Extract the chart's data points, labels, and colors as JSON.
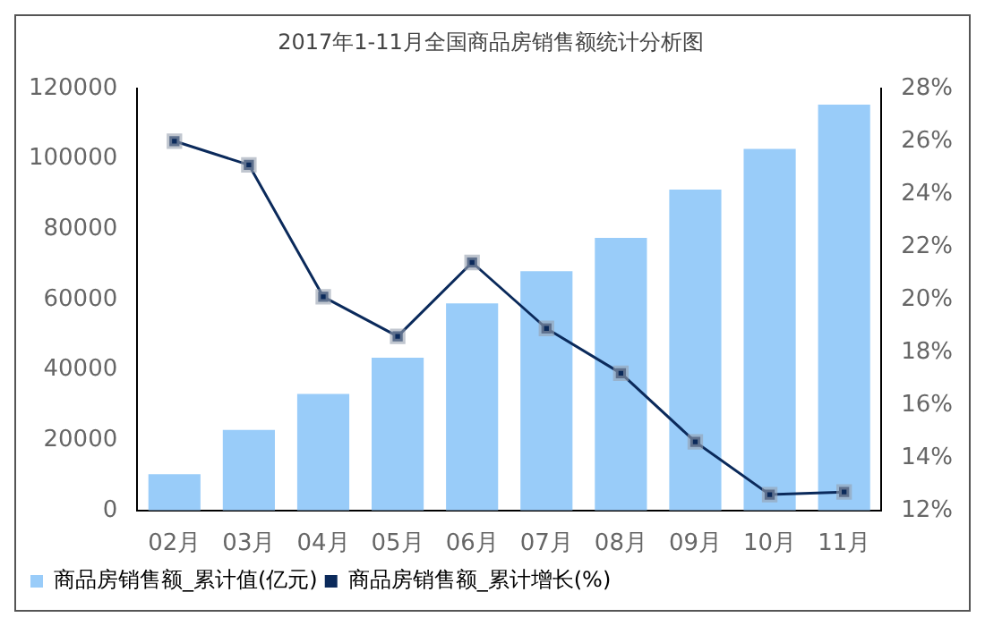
{
  "chart_data": {
    "type": "bar",
    "title": "2017年1-11月全国商品房销售额统计分析图",
    "categories": [
      "02月",
      "03月",
      "04月",
      "05月",
      "06月",
      "07月",
      "08月",
      "09月",
      "10月",
      "11月"
    ],
    "series": [
      {
        "name": "商品房销售额_累计值(亿元)",
        "color": "#99ccf9",
        "values": [
          10300,
          22900,
          33100,
          43400,
          58900,
          68000,
          77500,
          91200,
          102800,
          115400
        ]
      },
      {
        "name": "商品房销售额_累计增长(%)",
        "type": "line",
        "axis": "y2",
        "color": "#0b2a5b",
        "values": [
          26.0,
          25.1,
          20.1,
          18.6,
          21.4,
          18.9,
          17.2,
          14.6,
          12.6,
          12.7
        ]
      }
    ],
    "ylim": [
      0,
      120000
    ],
    "yticks": [
      0,
      20000,
      40000,
      60000,
      80000,
      100000,
      120000
    ],
    "y2lim": [
      12,
      28
    ],
    "y2ticks": [
      {
        "value": 12,
        "label": "12%"
      },
      {
        "value": 14,
        "label": "14%"
      },
      {
        "value": 16,
        "label": "16%"
      },
      {
        "value": 18,
        "label": "18%"
      },
      {
        "value": 20,
        "label": "20%"
      },
      {
        "value": 22,
        "label": "22%"
      },
      {
        "value": 24,
        "label": "24%"
      },
      {
        "value": 26,
        "label": "26%"
      },
      {
        "value": 28,
        "label": "28%"
      }
    ],
    "grid": false,
    "legend": "bottom left",
    "marker": "square",
    "line_style": "solid"
  }
}
